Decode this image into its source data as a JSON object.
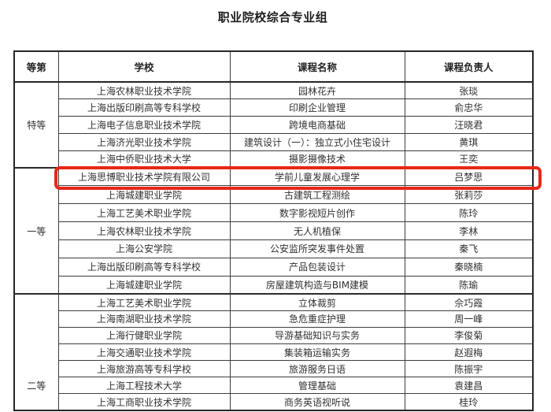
{
  "page": {
    "title": "职业院校综合专业组"
  },
  "table": {
    "headers": [
      "等第",
      "学校",
      "课程名称",
      "课程负责人"
    ],
    "sections": [
      {
        "grade": "特等",
        "rows": [
          {
            "school": "上海农林职业技术学院",
            "course": "园林花卉",
            "leader": "张琰",
            "highlighted": false
          },
          {
            "school": "上海出版印刷高等专科学校",
            "course": "印刷企业管理",
            "leader": "俞忠华",
            "highlighted": false
          },
          {
            "school": "上海电子信息职业技术学院",
            "course": "跨境电商基础",
            "leader": "汪晓君",
            "highlighted": false
          },
          {
            "school": "上海济光职业技术学院",
            "course": "建筑设计（一）：独立式小住宅设计",
            "leader": "黄琪",
            "highlighted": false
          },
          {
            "school": "上海中侨职业技术大学",
            "course": "摄影摄像技术",
            "leader": "王奕",
            "highlighted": false
          }
        ]
      },
      {
        "grade": "一等",
        "rows": [
          {
            "school": "上海思博职业技术学院有限公司",
            "course": "学前儿童发展心理学",
            "leader": "吕梦思",
            "highlighted": true
          },
          {
            "school": "上海城建职业学院",
            "course": "古建筑工程测绘",
            "leader": "张莉莎",
            "highlighted": false
          },
          {
            "school": "上海工艺美术职业学院",
            "course": "数字影视短片创作",
            "leader": "陈玲",
            "highlighted": false
          },
          {
            "school": "上海农林职业技术学院",
            "course": "无人机植保",
            "leader": "李林",
            "highlighted": false
          },
          {
            "school": "上海公安学院",
            "course": "公安监所突发事件处置",
            "leader": "秦飞",
            "highlighted": false
          },
          {
            "school": "上海出版印刷高等专科学校",
            "course": "产品包装设计",
            "leader": "秦晓楠",
            "highlighted": false
          },
          {
            "school": "上海城建职业学院",
            "course": "房屋建筑构造与BIM建模",
            "leader": "陈瑜",
            "highlighted": false
          }
        ]
      },
      {
        "grade": "二等",
        "rows": [
          {
            "school": "上海工艺美术职业学院",
            "course": "立体裁剪",
            "leader": "佘巧霞",
            "highlighted": false
          },
          {
            "school": "上海南湖职业技术学院",
            "course": "急危重症护理",
            "leader": "周一峰",
            "highlighted": false
          },
          {
            "school": "上海行健职业学院",
            "course": "导游基础知识与实务",
            "leader": "李俊菊",
            "highlighted": false
          },
          {
            "school": "上海交通职业技术学院",
            "course": "集装箱运输实务",
            "leader": "赵遐梅",
            "highlighted": false
          },
          {
            "school": "上海旅游高等专科学校",
            "course": "旅游服务日语",
            "leader": "陈振宇",
            "highlighted": false
          },
          {
            "school": "上海工程技术大学",
            "course": "管理基础",
            "leader": "袁建昌",
            "highlighted": false
          },
          {
            "school": "上海工商职业技术学院",
            "course": "商务英语视听说",
            "leader": "桂玲",
            "highlighted": false
          }
        ]
      }
    ]
  },
  "highlight": {
    "color": "#e72818",
    "target_school": "上海思博职业技术学院有限公司"
  }
}
